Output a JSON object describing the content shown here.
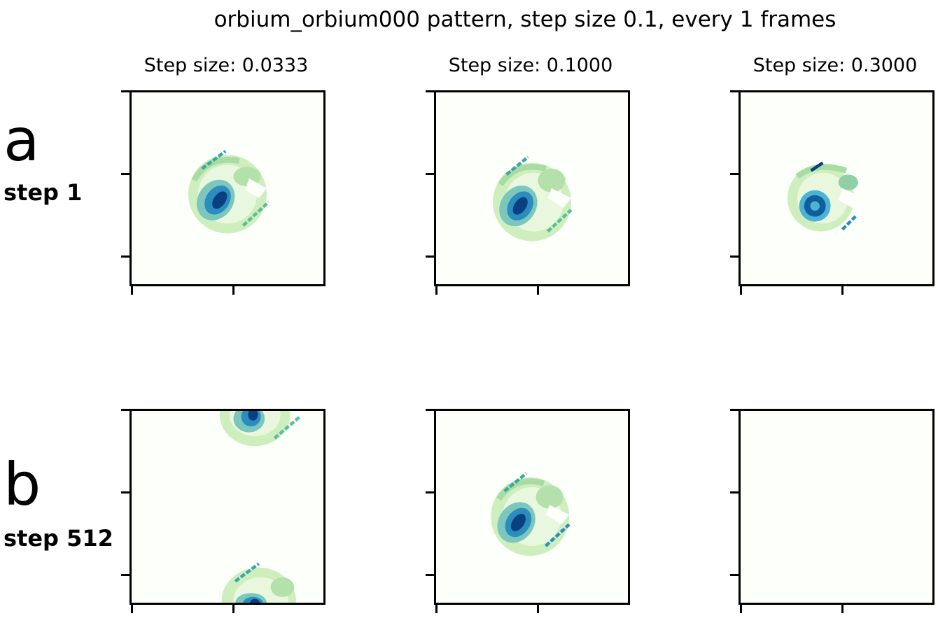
{
  "figure": {
    "suptitle": "orbium_orbium000 pattern, step size 0.1, every 1 frames",
    "column_titles": [
      "Step size: 0.0333",
      "Step size: 0.1000",
      "Step size: 0.3000"
    ],
    "rows": [
      {
        "letter": "a",
        "step_label": "step 1"
      },
      {
        "letter": "b",
        "step_label": "step 512"
      }
    ],
    "colormap": "GnBu",
    "colors": {
      "background": "#fcfffa",
      "low": "#d8f0c6",
      "mid": "#4eb3a5",
      "high": "#084081",
      "frame": "#000000"
    }
  },
  "chart_data": {
    "type": "heatmap",
    "grid": "off",
    "tick_labels": "none",
    "panels": [
      {
        "row": "a",
        "step_size": 0.0333,
        "state": "orbium pattern near center-left"
      },
      {
        "row": "a",
        "step_size": 0.1,
        "state": "orbium pattern near center-left"
      },
      {
        "row": "a",
        "step_size": 0.3,
        "state": "orbium pattern, compact ring with dark core"
      },
      {
        "row": "b",
        "step_size": 0.0333,
        "state": "pattern wrapped across top and bottom edges"
      },
      {
        "row": "b",
        "step_size": 0.1,
        "state": "orbium pattern lower-center"
      },
      {
        "row": "b",
        "step_size": 0.3,
        "state": "empty"
      }
    ]
  }
}
